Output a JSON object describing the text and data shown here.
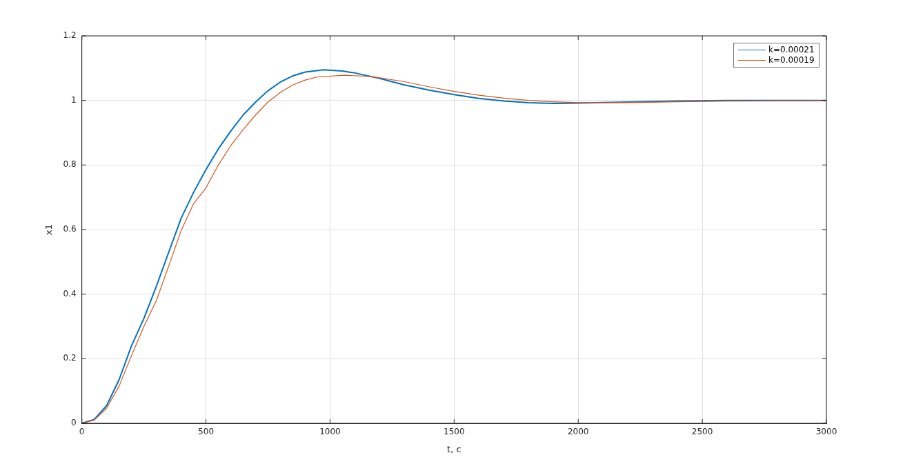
{
  "chart_data": {
    "type": "line",
    "xlabel": "t, c",
    "ylabel": "x1",
    "xlim": [
      0,
      3000
    ],
    "xticks": [
      0,
      500,
      1000,
      1500,
      2000,
      2500,
      3000
    ],
    "ylim": [
      0,
      1.2
    ],
    "yticks": [
      0,
      0.2,
      0.4,
      0.6,
      0.8,
      1,
      1.2
    ],
    "grid": true,
    "legend": "top right",
    "marker": "none",
    "line_style": "solid",
    "series": [
      {
        "name": "k=0.00021",
        "color": "#0072bd",
        "x": [
          0,
          50,
          100,
          150,
          200,
          250,
          300,
          350,
          400,
          450,
          500,
          550,
          600,
          650,
          700,
          750,
          800,
          850,
          900,
          975,
          1050,
          1100,
          1200,
          1300,
          1400,
          1500,
          1600,
          1700,
          1800,
          1900,
          2000,
          2200,
          2400,
          2600,
          3000
        ],
        "values": [
          0,
          0.012,
          0.055,
          0.135,
          0.24,
          0.325,
          0.424,
          0.53,
          0.635,
          0.715,
          0.786,
          0.85,
          0.905,
          0.955,
          0.995,
          1.03,
          1.057,
          1.076,
          1.088,
          1.095,
          1.091,
          1.085,
          1.068,
          1.048,
          1.032,
          1.018,
          1.006,
          0.998,
          0.993,
          0.991,
          0.992,
          0.995,
          0.998,
          1,
          1
        ]
      },
      {
        "name": "k=0.00019",
        "color": "#d95319",
        "x": [
          0,
          50,
          100,
          150,
          200,
          250,
          300,
          350,
          400,
          450,
          500,
          550,
          600,
          650,
          700,
          750,
          800,
          850,
          900,
          950,
          1060,
          1150,
          1200,
          1300,
          1400,
          1500,
          1600,
          1700,
          1800,
          1900,
          2000,
          2200,
          2400,
          2600,
          3000
        ],
        "values": [
          0,
          0.01,
          0.047,
          0.115,
          0.21,
          0.3,
          0.38,
          0.487,
          0.597,
          0.68,
          0.729,
          0.8,
          0.86,
          0.91,
          0.955,
          0.995,
          1.025,
          1.048,
          1.063,
          1.073,
          1.078,
          1.075,
          1.07,
          1.058,
          1.042,
          1.028,
          1.016,
          1.007,
          1,
          0.996,
          0.993,
          0.993,
          0.996,
          0.998,
          0.999
        ]
      }
    ]
  }
}
